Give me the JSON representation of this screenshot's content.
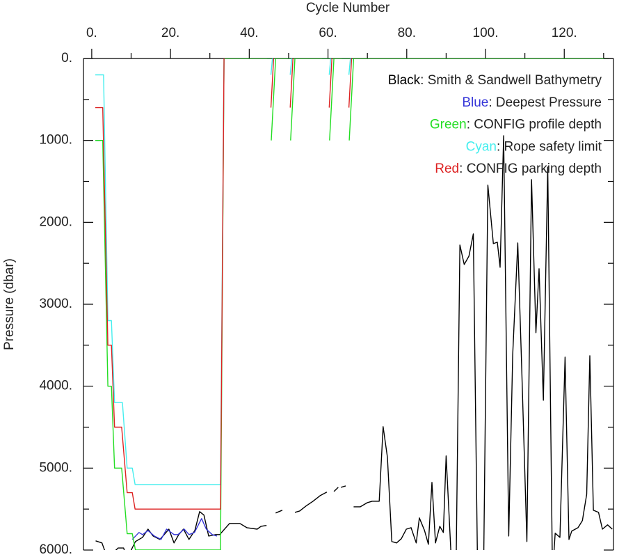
{
  "chart_data": {
    "type": "line",
    "xlabel": "Cycle Number",
    "ylabel": "Pressure (dbar)",
    "xlim": [
      -2.1,
      132.5
    ],
    "ylim": [
      0,
      6000
    ],
    "y_inverted": true,
    "xticks": [
      {
        "value": 0,
        "label": "0."
      },
      {
        "value": 20,
        "label": "20."
      },
      {
        "value": 40,
        "label": "40."
      },
      {
        "value": 60,
        "label": "60."
      },
      {
        "value": 80,
        "label": "80."
      },
      {
        "value": 100,
        "label": "100."
      },
      {
        "value": 120,
        "label": "120."
      }
    ],
    "xticks_minor": [
      10,
      30,
      50,
      70,
      90,
      110,
      130
    ],
    "yticks": [
      {
        "value": 0,
        "label": "0."
      },
      {
        "value": 1000,
        "label": "1000."
      },
      {
        "value": 2000,
        "label": "2000."
      },
      {
        "value": 3000,
        "label": "3000."
      },
      {
        "value": 4000,
        "label": "4000."
      },
      {
        "value": 5000,
        "label": "5000."
      },
      {
        "value": 6000,
        "label": "6000."
      }
    ],
    "yticks_minor": [
      500,
      1500,
      2500,
      3500,
      4500,
      5500
    ],
    "legend_separator": ": ",
    "series": [
      {
        "color_label": "Black",
        "name": "Smith & Sandwell Bathymetry",
        "color": "#000000",
        "x": [
          1,
          2.6,
          4,
          6.7,
          8.1,
          9,
          11.1,
          12.9,
          14.3,
          15.6,
          17.3,
          18.4,
          19.6,
          20.9,
          22.1,
          23.3,
          24.7,
          26.2,
          27.4,
          28.5,
          29.7,
          31.5,
          32.5,
          35,
          37.6,
          39.4,
          42,
          43,
          44.4,
          null,
          46.7,
          48.4,
          null,
          51.6,
          52.8,
          54.4,
          56.2,
          58,
          59.7,
          null,
          61.5,
          62.6,
          null,
          63.3,
          64.5,
          null,
          66.5,
          68.2,
          70,
          71.2,
          73,
          74,
          75.1,
          76.2,
          77.4,
          78.6,
          79.9,
          81.1,
          82.4,
          83.2,
          84.5,
          85.5,
          86.4,
          87.3,
          88.4,
          89.3,
          90,
          91.5,
          92.5,
          93.5,
          94.6,
          95.8,
          96.9,
          98,
          99.5,
          100.6,
          102,
          103,
          103.7,
          104.6,
          105.9,
          106.9,
          108.2,
          109.2,
          110.5,
          111.7,
          112.8,
          113.6,
          114.7,
          115.8,
          117,
          117.7,
          118.9,
          120.2,
          121.2,
          121.9,
          123.5,
          124.6,
          125.7,
          126.5,
          127.4,
          128.7,
          129.7,
          131,
          132.2
        ],
        "values": [
          5888,
          5913,
          6100,
          5975,
          5975,
          6100,
          5896,
          5845,
          5745,
          5829,
          5871,
          5811,
          5745,
          5913,
          5811,
          5745,
          5871,
          5760,
          5531,
          5573,
          5829,
          5811,
          5811,
          5675,
          5675,
          5727,
          5745,
          5710,
          5700,
          null,
          5548,
          5514,
          null,
          5540,
          5523,
          5463,
          5404,
          5336,
          5293,
          null,
          5285,
          5234,
          null,
          5234,
          5217,
          null,
          5472,
          5472,
          5421,
          5404,
          5404,
          4494,
          4868,
          5896,
          5913,
          5862,
          5745,
          5727,
          5913,
          5607,
          5760,
          5930,
          5174,
          5913,
          5710,
          5786,
          4851,
          6300,
          6300,
          2277,
          2515,
          2413,
          2141,
          6300,
          6300,
          1546,
          2260,
          2243,
          2549,
          943,
          5829,
          3619,
          2252,
          3789,
          5896,
          1478,
          3347,
          2566,
          4172,
          1325,
          6300,
          5794,
          5845,
          3645,
          5871,
          5769,
          5727,
          5641,
          5319,
          3628,
          5514,
          5540,
          5745,
          5692,
          5745
        ]
      },
      {
        "color_label": "Blue",
        "name": "Deepest Pressure",
        "color": "#3535d8",
        "x": [
          1,
          2.5,
          null,
          10.3,
          12,
          12.9,
          14.3,
          15.9,
          17.6,
          19,
          20.9,
          21.9,
          23.5,
          24.7,
          26.1,
          27.9,
          29.1,
          30.6,
          31.8,
          null,
          44.5,
          46.3,
          null,
          49.5,
          51,
          null,
          58.5,
          60.5,
          null,
          63.5,
          65.5
        ],
        "values": [
          1000,
          1000,
          null,
          5871,
          5786,
          5811,
          5762,
          5829,
          5871,
          5745,
          5811,
          5811,
          5745,
          5811,
          5786,
          5616,
          5745,
          5811,
          5829,
          null,
          0,
          0,
          null,
          0,
          0,
          null,
          0,
          0,
          null,
          0,
          0
        ]
      },
      {
        "color_label": "Green",
        "name": "CONFIG profile depth",
        "color": "#22dd22",
        "x": [
          0.9,
          2.8,
          4.1,
          5,
          5.8,
          7.6,
          9,
          10.3,
          11.1,
          32.7,
          33.6,
          131.3,
          null,
          45.6,
          46.7,
          null,
          50.5,
          51.6,
          null,
          60.4,
          61.5,
          null,
          65.4,
          66.5
        ],
        "values": [
          1000,
          1000,
          4000,
          4000,
          5000,
          5000,
          5800,
          5800,
          6000,
          6000,
          0,
          0,
          null,
          1000,
          0,
          null,
          1000,
          0,
          null,
          1000,
          0,
          null,
          1000,
          0
        ]
      },
      {
        "color_label": "Cyan",
        "name": "Rope safety limit",
        "color": "#44eeee",
        "x": [
          0.9,
          3,
          4.1,
          5,
          5.8,
          7.8,
          9,
          10.3,
          11,
          32.7,
          33.6,
          null,
          45.5,
          45.9,
          null,
          50.4,
          50.8,
          null,
          60.3,
          60.7,
          null,
          65.3,
          65.7
        ],
        "values": [
          200,
          200,
          3200,
          3200,
          4200,
          4200,
          5000,
          5000,
          5200,
          5200,
          0,
          null,
          200,
          0,
          null,
          200,
          0,
          null,
          200,
          0,
          null,
          200,
          0
        ]
      },
      {
        "color_label": "Red",
        "name": "CONFIG parking depth",
        "color": "#dd2222",
        "x": [
          0.9,
          2.8,
          4.1,
          5,
          5.8,
          7.6,
          9,
          10.3,
          11,
          32.7,
          33.6,
          null,
          45.5,
          46.2,
          null,
          50.4,
          51.1,
          null,
          60.3,
          61,
          null,
          65.3,
          66
        ],
        "values": [
          600,
          600,
          3500,
          3500,
          4500,
          4500,
          5300,
          5300,
          5500,
          5500,
          0,
          null,
          600,
          0,
          null,
          600,
          0,
          null,
          600,
          0,
          null,
          600,
          0
        ]
      }
    ]
  }
}
